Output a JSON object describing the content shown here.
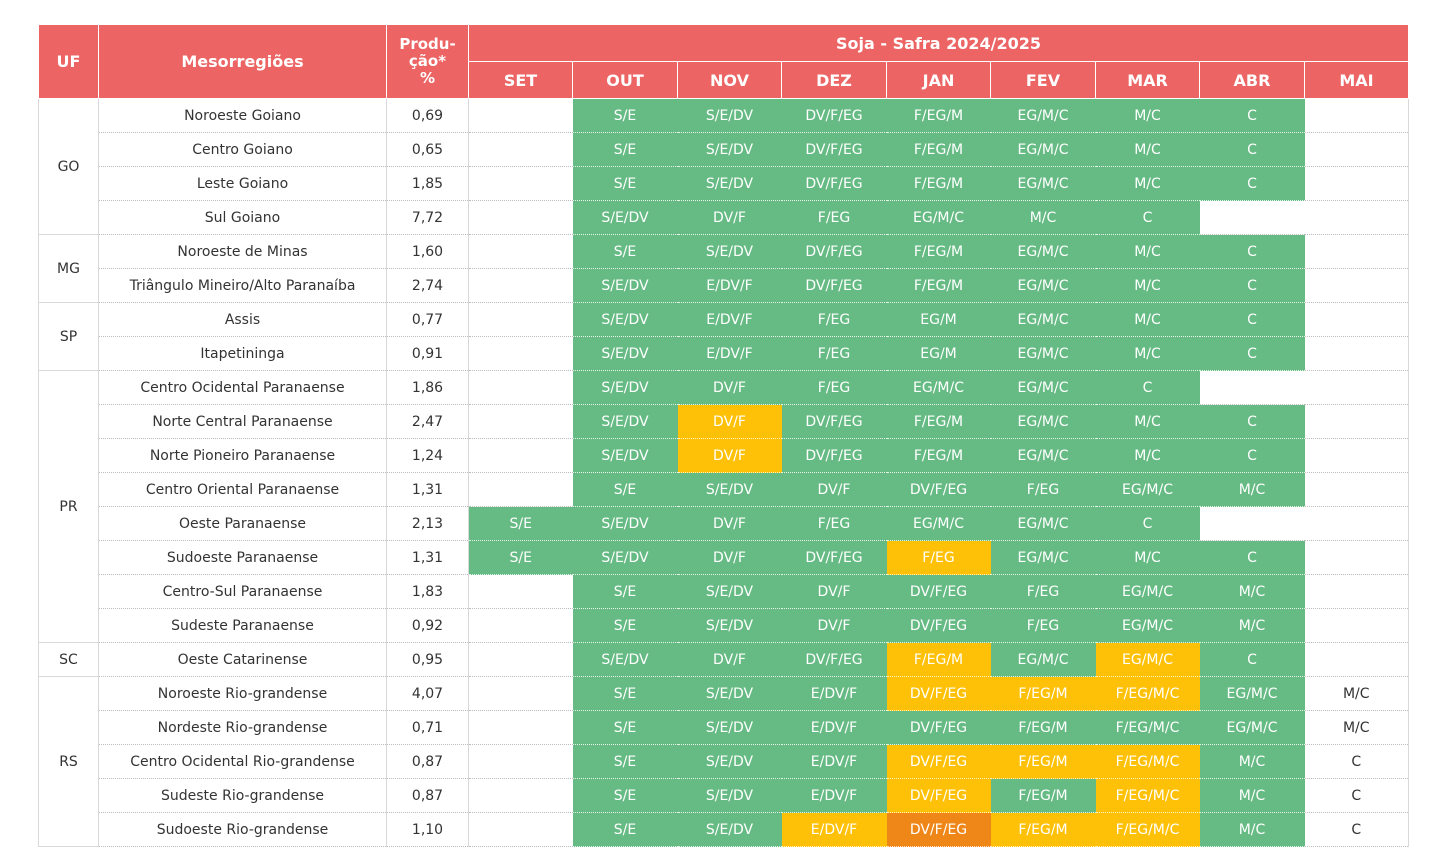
{
  "header": {
    "uf": "UF",
    "meso": "Mesorregiões",
    "prod_line1": "Produ-",
    "prod_line2": "ção*",
    "prod_line3": "%",
    "crop": "Soja - Safra 2024/2025",
    "months": [
      "SET",
      "OUT",
      "NOV",
      "DEZ",
      "JAN",
      "FEV",
      "MAR",
      "ABR",
      "MAI"
    ]
  },
  "colors": {
    "header": "#ec6464",
    "green": "#66bb84",
    "yellow": "#ffc107",
    "orange": "#ef8618"
  },
  "groups": [
    {
      "uf": "GO",
      "rows": [
        {
          "meso": "Noroeste Goiano",
          "prod": "0,69",
          "cells": [
            {
              "t": "",
              "c": ""
            },
            {
              "t": "S/E",
              "c": "g"
            },
            {
              "t": "S/E/DV",
              "c": "g"
            },
            {
              "t": "DV/F/EG",
              "c": "g"
            },
            {
              "t": "F/EG/M",
              "c": "g"
            },
            {
              "t": "EG/M/C",
              "c": "g"
            },
            {
              "t": "M/C",
              "c": "g"
            },
            {
              "t": "C",
              "c": "g"
            },
            {
              "t": "",
              "c": ""
            }
          ]
        },
        {
          "meso": "Centro Goiano",
          "prod": "0,65",
          "cells": [
            {
              "t": "",
              "c": ""
            },
            {
              "t": "S/E",
              "c": "g"
            },
            {
              "t": "S/E/DV",
              "c": "g"
            },
            {
              "t": "DV/F/EG",
              "c": "g"
            },
            {
              "t": "F/EG/M",
              "c": "g"
            },
            {
              "t": "EG/M/C",
              "c": "g"
            },
            {
              "t": "M/C",
              "c": "g"
            },
            {
              "t": "C",
              "c": "g"
            },
            {
              "t": "",
              "c": ""
            }
          ]
        },
        {
          "meso": "Leste Goiano",
          "prod": "1,85",
          "cells": [
            {
              "t": "",
              "c": ""
            },
            {
              "t": "S/E",
              "c": "g"
            },
            {
              "t": "S/E/DV",
              "c": "g"
            },
            {
              "t": "DV/F/EG",
              "c": "g"
            },
            {
              "t": "F/EG/M",
              "c": "g"
            },
            {
              "t": "EG/M/C",
              "c": "g"
            },
            {
              "t": "M/C",
              "c": "g"
            },
            {
              "t": "C",
              "c": "g"
            },
            {
              "t": "",
              "c": ""
            }
          ]
        },
        {
          "meso": "Sul Goiano",
          "prod": "7,72",
          "cells": [
            {
              "t": "",
              "c": ""
            },
            {
              "t": "S/E/DV",
              "c": "g"
            },
            {
              "t": "DV/F",
              "c": "g"
            },
            {
              "t": "F/EG",
              "c": "g"
            },
            {
              "t": "EG/M/C",
              "c": "g"
            },
            {
              "t": "M/C",
              "c": "g"
            },
            {
              "t": "C",
              "c": "g"
            },
            {
              "t": "",
              "c": ""
            },
            {
              "t": "",
              "c": ""
            }
          ]
        }
      ]
    },
    {
      "uf": "MG",
      "rows": [
        {
          "meso": "Noroeste de Minas",
          "prod": "1,60",
          "cells": [
            {
              "t": "",
              "c": ""
            },
            {
              "t": "S/E",
              "c": "g"
            },
            {
              "t": "S/E/DV",
              "c": "g"
            },
            {
              "t": "DV/F/EG",
              "c": "g"
            },
            {
              "t": "F/EG/M",
              "c": "g"
            },
            {
              "t": "EG/M/C",
              "c": "g"
            },
            {
              "t": "M/C",
              "c": "g"
            },
            {
              "t": "C",
              "c": "g"
            },
            {
              "t": "",
              "c": ""
            }
          ]
        },
        {
          "meso": "Triângulo Mineiro/Alto Paranaíba",
          "prod": "2,74",
          "cells": [
            {
              "t": "",
              "c": ""
            },
            {
              "t": "S/E/DV",
              "c": "g"
            },
            {
              "t": "E/DV/F",
              "c": "g"
            },
            {
              "t": "DV/F/EG",
              "c": "g"
            },
            {
              "t": "F/EG/M",
              "c": "g"
            },
            {
              "t": "EG/M/C",
              "c": "g"
            },
            {
              "t": "M/C",
              "c": "g"
            },
            {
              "t": "C",
              "c": "g"
            },
            {
              "t": "",
              "c": ""
            }
          ]
        }
      ]
    },
    {
      "uf": "SP",
      "rows": [
        {
          "meso": "Assis",
          "prod": "0,77",
          "cells": [
            {
              "t": "",
              "c": ""
            },
            {
              "t": "S/E/DV",
              "c": "g"
            },
            {
              "t": "E/DV/F",
              "c": "g"
            },
            {
              "t": "F/EG",
              "c": "g"
            },
            {
              "t": "EG/M",
              "c": "g"
            },
            {
              "t": "EG/M/C",
              "c": "g"
            },
            {
              "t": "M/C",
              "c": "g"
            },
            {
              "t": "C",
              "c": "g"
            },
            {
              "t": "",
              "c": ""
            }
          ]
        },
        {
          "meso": "Itapetininga",
          "prod": "0,91",
          "cells": [
            {
              "t": "",
              "c": ""
            },
            {
              "t": "S/E/DV",
              "c": "g"
            },
            {
              "t": "E/DV/F",
              "c": "g"
            },
            {
              "t": "F/EG",
              "c": "g"
            },
            {
              "t": "EG/M",
              "c": "g"
            },
            {
              "t": "EG/M/C",
              "c": "g"
            },
            {
              "t": "M/C",
              "c": "g"
            },
            {
              "t": "C",
              "c": "g"
            },
            {
              "t": "",
              "c": ""
            }
          ]
        }
      ]
    },
    {
      "uf": "PR",
      "rows": [
        {
          "meso": "Centro Ocidental Paranaense",
          "prod": "1,86",
          "cells": [
            {
              "t": "",
              "c": ""
            },
            {
              "t": "S/E/DV",
              "c": "g"
            },
            {
              "t": "DV/F",
              "c": "g"
            },
            {
              "t": "F/EG",
              "c": "g"
            },
            {
              "t": "EG/M/C",
              "c": "g"
            },
            {
              "t": "EG/M/C",
              "c": "g"
            },
            {
              "t": "C",
              "c": "g"
            },
            {
              "t": "",
              "c": ""
            },
            {
              "t": "",
              "c": ""
            }
          ]
        },
        {
          "meso": "Norte Central Paranaense",
          "prod": "2,47",
          "cells": [
            {
              "t": "",
              "c": ""
            },
            {
              "t": "S/E/DV",
              "c": "g"
            },
            {
              "t": "DV/F",
              "c": "y"
            },
            {
              "t": "DV/F/EG",
              "c": "g"
            },
            {
              "t": "F/EG/M",
              "c": "g"
            },
            {
              "t": "EG/M/C",
              "c": "g"
            },
            {
              "t": "M/C",
              "c": "g"
            },
            {
              "t": "C",
              "c": "g"
            },
            {
              "t": "",
              "c": ""
            }
          ]
        },
        {
          "meso": "Norte Pioneiro Paranaense",
          "prod": "1,24",
          "cells": [
            {
              "t": "",
              "c": ""
            },
            {
              "t": "S/E/DV",
              "c": "g"
            },
            {
              "t": "DV/F",
              "c": "y"
            },
            {
              "t": "DV/F/EG",
              "c": "g"
            },
            {
              "t": "F/EG/M",
              "c": "g"
            },
            {
              "t": "EG/M/C",
              "c": "g"
            },
            {
              "t": "M/C",
              "c": "g"
            },
            {
              "t": "C",
              "c": "g"
            },
            {
              "t": "",
              "c": ""
            }
          ]
        },
        {
          "meso": "Centro Oriental Paranaense",
          "prod": "1,31",
          "cells": [
            {
              "t": "",
              "c": ""
            },
            {
              "t": "S/E",
              "c": "g"
            },
            {
              "t": "S/E/DV",
              "c": "g"
            },
            {
              "t": "DV/F",
              "c": "g"
            },
            {
              "t": "DV/F/EG",
              "c": "g"
            },
            {
              "t": "F/EG",
              "c": "g"
            },
            {
              "t": "EG/M/C",
              "c": "g"
            },
            {
              "t": "M/C",
              "c": "g"
            },
            {
              "t": "",
              "c": ""
            }
          ]
        },
        {
          "meso": "Oeste Paranaense",
          "prod": "2,13",
          "cells": [
            {
              "t": "S/E",
              "c": "g"
            },
            {
              "t": "S/E/DV",
              "c": "g"
            },
            {
              "t": "DV/F",
              "c": "g"
            },
            {
              "t": "F/EG",
              "c": "g"
            },
            {
              "t": "EG/M/C",
              "c": "g"
            },
            {
              "t": "EG/M/C",
              "c": "g"
            },
            {
              "t": "C",
              "c": "g"
            },
            {
              "t": "",
              "c": ""
            },
            {
              "t": "",
              "c": ""
            }
          ]
        },
        {
          "meso": "Sudoeste Paranaense",
          "prod": "1,31",
          "cells": [
            {
              "t": "S/E",
              "c": "g"
            },
            {
              "t": "S/E/DV",
              "c": "g"
            },
            {
              "t": "DV/F",
              "c": "g"
            },
            {
              "t": "DV/F/EG",
              "c": "g"
            },
            {
              "t": "F/EG",
              "c": "y"
            },
            {
              "t": "EG/M/C",
              "c": "g"
            },
            {
              "t": "M/C",
              "c": "g"
            },
            {
              "t": "C",
              "c": "g"
            },
            {
              "t": "",
              "c": ""
            }
          ]
        },
        {
          "meso": "Centro-Sul Paranaense",
          "prod": "1,83",
          "cells": [
            {
              "t": "",
              "c": ""
            },
            {
              "t": "S/E",
              "c": "g"
            },
            {
              "t": "S/E/DV",
              "c": "g"
            },
            {
              "t": "DV/F",
              "c": "g"
            },
            {
              "t": "DV/F/EG",
              "c": "g"
            },
            {
              "t": "F/EG",
              "c": "g"
            },
            {
              "t": "EG/M/C",
              "c": "g"
            },
            {
              "t": "M/C",
              "c": "g"
            },
            {
              "t": "",
              "c": ""
            }
          ]
        },
        {
          "meso": "Sudeste Paranaense",
          "prod": "0,92",
          "cells": [
            {
              "t": "",
              "c": ""
            },
            {
              "t": "S/E",
              "c": "g"
            },
            {
              "t": "S/E/DV",
              "c": "g"
            },
            {
              "t": "DV/F",
              "c": "g"
            },
            {
              "t": "DV/F/EG",
              "c": "g"
            },
            {
              "t": "F/EG",
              "c": "g"
            },
            {
              "t": "EG/M/C",
              "c": "g"
            },
            {
              "t": "M/C",
              "c": "g"
            },
            {
              "t": "",
              "c": ""
            }
          ]
        }
      ]
    },
    {
      "uf": "SC",
      "rows": [
        {
          "meso": "Oeste Catarinense",
          "prod": "0,95",
          "cells": [
            {
              "t": "",
              "c": ""
            },
            {
              "t": "S/E/DV",
              "c": "g"
            },
            {
              "t": "DV/F",
              "c": "g"
            },
            {
              "t": "DV/F/EG",
              "c": "g"
            },
            {
              "t": "F/EG/M",
              "c": "y"
            },
            {
              "t": "EG/M/C",
              "c": "g"
            },
            {
              "t": "EG/M/C",
              "c": "y"
            },
            {
              "t": "C",
              "c": "g"
            },
            {
              "t": "",
              "c": ""
            }
          ]
        }
      ]
    },
    {
      "uf": "RS",
      "rows": [
        {
          "meso": "Noroeste Rio-grandense",
          "prod": "4,07",
          "cells": [
            {
              "t": "",
              "c": ""
            },
            {
              "t": "S/E",
              "c": "g"
            },
            {
              "t": "S/E/DV",
              "c": "g"
            },
            {
              "t": "E/DV/F",
              "c": "g"
            },
            {
              "t": "DV/F/EG",
              "c": "y"
            },
            {
              "t": "F/EG/M",
              "c": "y"
            },
            {
              "t": "F/EG/M/C",
              "c": "y"
            },
            {
              "t": "EG/M/C",
              "c": "g"
            },
            {
              "t": "M/C",
              "c": "w"
            }
          ]
        },
        {
          "meso": "Nordeste Rio-grandense",
          "prod": "0,71",
          "cells": [
            {
              "t": "",
              "c": ""
            },
            {
              "t": "S/E",
              "c": "g"
            },
            {
              "t": "S/E/DV",
              "c": "g"
            },
            {
              "t": "E/DV/F",
              "c": "g"
            },
            {
              "t": "DV/F/EG",
              "c": "g"
            },
            {
              "t": "F/EG/M",
              "c": "g"
            },
            {
              "t": "F/EG/M/C",
              "c": "g"
            },
            {
              "t": "EG/M/C",
              "c": "g"
            },
            {
              "t": "M/C",
              "c": "w"
            }
          ]
        },
        {
          "meso": "Centro Ocidental Rio-grandense",
          "prod": "0,87",
          "cells": [
            {
              "t": "",
              "c": ""
            },
            {
              "t": "S/E",
              "c": "g"
            },
            {
              "t": "S/E/DV",
              "c": "g"
            },
            {
              "t": "E/DV/F",
              "c": "g"
            },
            {
              "t": "DV/F/EG",
              "c": "y"
            },
            {
              "t": "F/EG/M",
              "c": "y"
            },
            {
              "t": "F/EG/M/C",
              "c": "y"
            },
            {
              "t": "M/C",
              "c": "g"
            },
            {
              "t": "C",
              "c": "w"
            }
          ]
        },
        {
          "meso": "Sudeste Rio-grandense",
          "prod": "0,87",
          "cells": [
            {
              "t": "",
              "c": ""
            },
            {
              "t": "S/E",
              "c": "g"
            },
            {
              "t": "S/E/DV",
              "c": "g"
            },
            {
              "t": "E/DV/F",
              "c": "g"
            },
            {
              "t": "DV/F/EG",
              "c": "y"
            },
            {
              "t": "F/EG/M",
              "c": "g"
            },
            {
              "t": "F/EG/M/C",
              "c": "y"
            },
            {
              "t": "M/C",
              "c": "g"
            },
            {
              "t": "C",
              "c": "w"
            }
          ]
        },
        {
          "meso": "Sudoeste Rio-grandense",
          "prod": "1,10",
          "cells": [
            {
              "t": "",
              "c": ""
            },
            {
              "t": "S/E",
              "c": "g"
            },
            {
              "t": "S/E/DV",
              "c": "g"
            },
            {
              "t": "E/DV/F",
              "c": "y"
            },
            {
              "t": "DV/F/EG",
              "c": "o"
            },
            {
              "t": "F/EG/M",
              "c": "y"
            },
            {
              "t": "F/EG/M/C",
              "c": "y"
            },
            {
              "t": "M/C",
              "c": "g"
            },
            {
              "t": "C",
              "c": "w"
            }
          ]
        }
      ]
    }
  ]
}
